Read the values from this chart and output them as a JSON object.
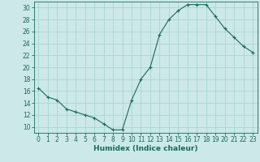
{
  "x": [
    0,
    1,
    2,
    3,
    4,
    5,
    6,
    7,
    8,
    9,
    10,
    11,
    12,
    13,
    14,
    15,
    16,
    17,
    18,
    19,
    20,
    21,
    22,
    23
  ],
  "y": [
    16.5,
    15.0,
    14.5,
    13.0,
    12.5,
    12.0,
    11.5,
    10.5,
    9.5,
    9.5,
    14.5,
    18.0,
    20.0,
    25.5,
    28.0,
    29.5,
    30.5,
    30.5,
    30.5,
    28.5,
    26.5,
    25.0,
    23.5,
    22.5
  ],
  "xlabel": "Humidex (Indice chaleur)",
  "xlim": [
    -0.5,
    23.5
  ],
  "ylim": [
    9,
    31
  ],
  "yticks": [
    10,
    12,
    14,
    16,
    18,
    20,
    22,
    24,
    26,
    28,
    30
  ],
  "xticks": [
    0,
    1,
    2,
    3,
    4,
    5,
    6,
    7,
    8,
    9,
    10,
    11,
    12,
    13,
    14,
    15,
    16,
    17,
    18,
    19,
    20,
    21,
    22,
    23
  ],
  "line_color": "#1a6b5a",
  "marker": "+",
  "bg_color": "#cce8e8",
  "grid_color": "#aad4d4",
  "axis_color": "#1a6b5a",
  "label_color": "#1a6b5a",
  "xlabel_fontsize": 6.5,
  "tick_fontsize": 5.5
}
